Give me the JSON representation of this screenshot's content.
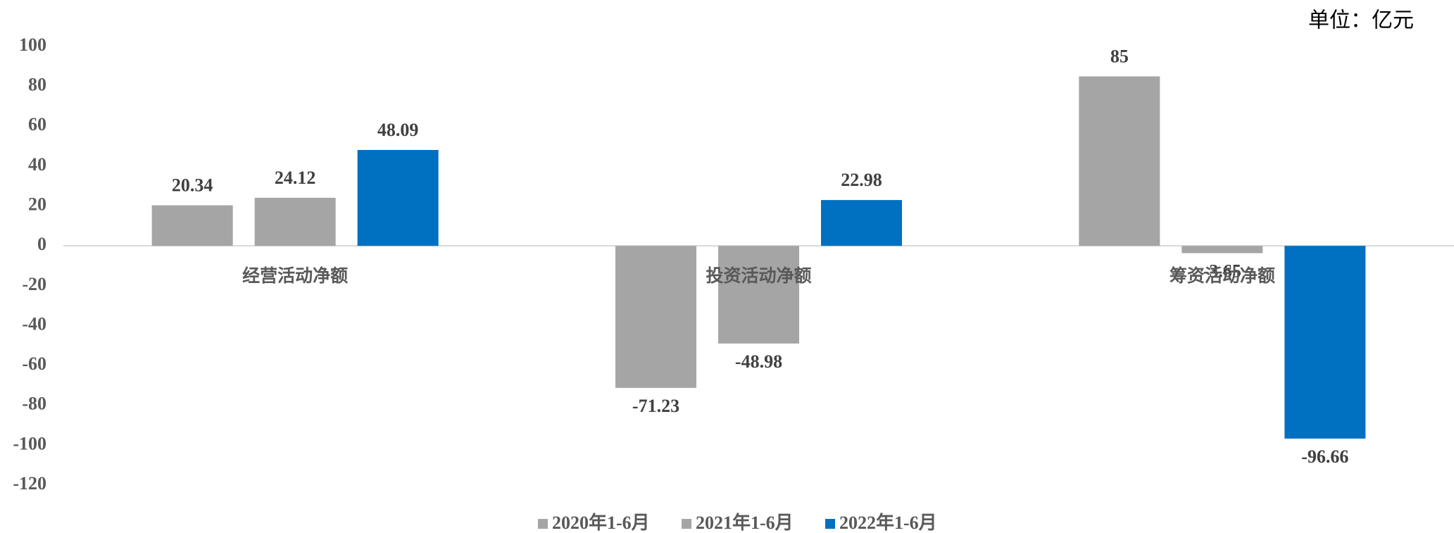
{
  "chart_data": {
    "type": "bar",
    "unit_label": "单位：亿元",
    "categories": [
      "经营活动净额",
      "投资活动净额",
      "筹资活动净额"
    ],
    "series": [
      {
        "name": "2020年1-6月",
        "color": "#a5a5a5",
        "values": [
          20.34,
          -71.23,
          85
        ]
      },
      {
        "name": "2021年1-6月",
        "color": "#a5a5a5",
        "values": [
          24.12,
          -48.98,
          -3.65
        ]
      },
      {
        "name": "2022年1-6月",
        "color": "#0070c0",
        "values": [
          48.09,
          22.98,
          -96.66
        ]
      }
    ],
    "ylim": [
      -120,
      100
    ],
    "yticks": [
      -120,
      -100,
      -80,
      -60,
      -40,
      -20,
      0,
      20,
      40,
      60,
      80,
      100
    ],
    "grid": false,
    "legend": "bottom"
  }
}
